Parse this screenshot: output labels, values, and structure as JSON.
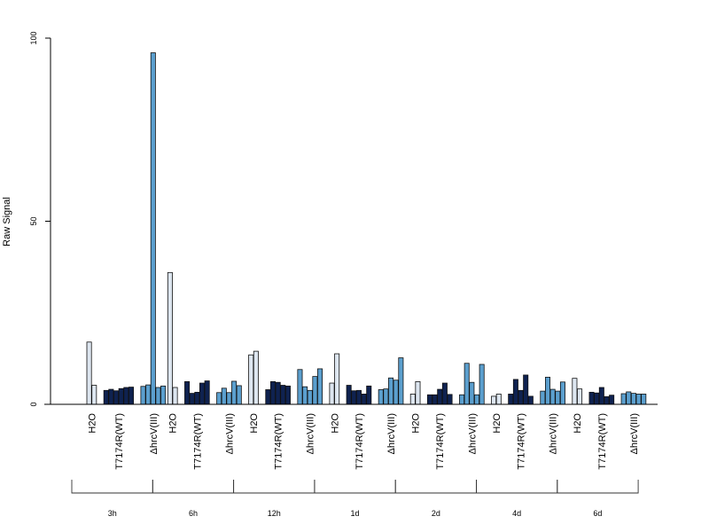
{
  "chart_data": {
    "type": "bar",
    "ylabel": "Raw Signal",
    "ylim": [
      0,
      100
    ],
    "yticks": [
      0,
      50,
      100
    ],
    "groups": [
      "H2O",
      "T7174R(WT)",
      "ΔhrcV(III)"
    ],
    "group_colors": [
      "#dde6f0",
      "#0f2250",
      "#5b9fce"
    ],
    "timepoints": [
      {
        "label": "3h",
        "H2O": [
          17,
          5.2
        ],
        "T7174R(WT)": [
          3.8,
          4.1,
          3.7,
          4.3,
          4.6,
          4.7
        ],
        "ΔhrcV(III)": [
          4.9,
          5.3,
          96,
          4.6,
          5.0
        ]
      },
      {
        "label": "6h",
        "H2O": [
          36,
          4.6
        ],
        "T7174R(WT)": [
          6.2,
          3.0,
          3.3,
          5.8,
          6.4
        ],
        "ΔhrcV(III)": [
          3.2,
          4.4,
          3.2,
          6.3,
          5.1
        ]
      },
      {
        "label": "12h",
        "H2O": [
          13.5,
          14.5
        ],
        "T7174R(WT)": [
          4.0,
          6.2,
          6.0,
          5.2,
          5.0
        ],
        "ΔhrcV(III)": [
          9.5,
          4.8,
          3.8,
          7.6,
          9.7
        ]
      },
      {
        "label": "1d",
        "H2O": [
          5.8,
          13.8
        ],
        "T7174R(WT)": [
          5.2,
          3.7,
          3.8,
          2.8,
          5.0
        ],
        "ΔhrcV(III)": [
          4.0,
          4.2,
          7.2,
          6.6,
          12.7
        ]
      },
      {
        "label": "2d",
        "H2O": [
          2.8,
          6.2
        ],
        "T7174R(WT)": [
          2.6,
          2.6,
          4.1,
          5.8,
          2.7
        ],
        "ΔhrcV(III)": [
          2.6,
          11.2,
          6.0,
          2.6,
          10.9
        ]
      },
      {
        "label": "4d",
        "H2O": [
          2.2,
          2.8
        ],
        "T7174R(WT)": [
          2.8,
          6.8,
          3.8,
          8.0,
          2.2
        ],
        "ΔhrcV(III)": [
          3.6,
          7.4,
          4.1,
          3.6,
          6.1
        ]
      },
      {
        "label": "6d",
        "H2O": [
          7.1,
          4.2
        ],
        "T7174R(WT)": [
          3.3,
          3.1,
          4.6,
          2.1,
          2.5
        ],
        "ΔhrcV(III)": [
          2.9,
          3.4,
          3.0,
          2.8,
          2.8
        ]
      }
    ]
  }
}
